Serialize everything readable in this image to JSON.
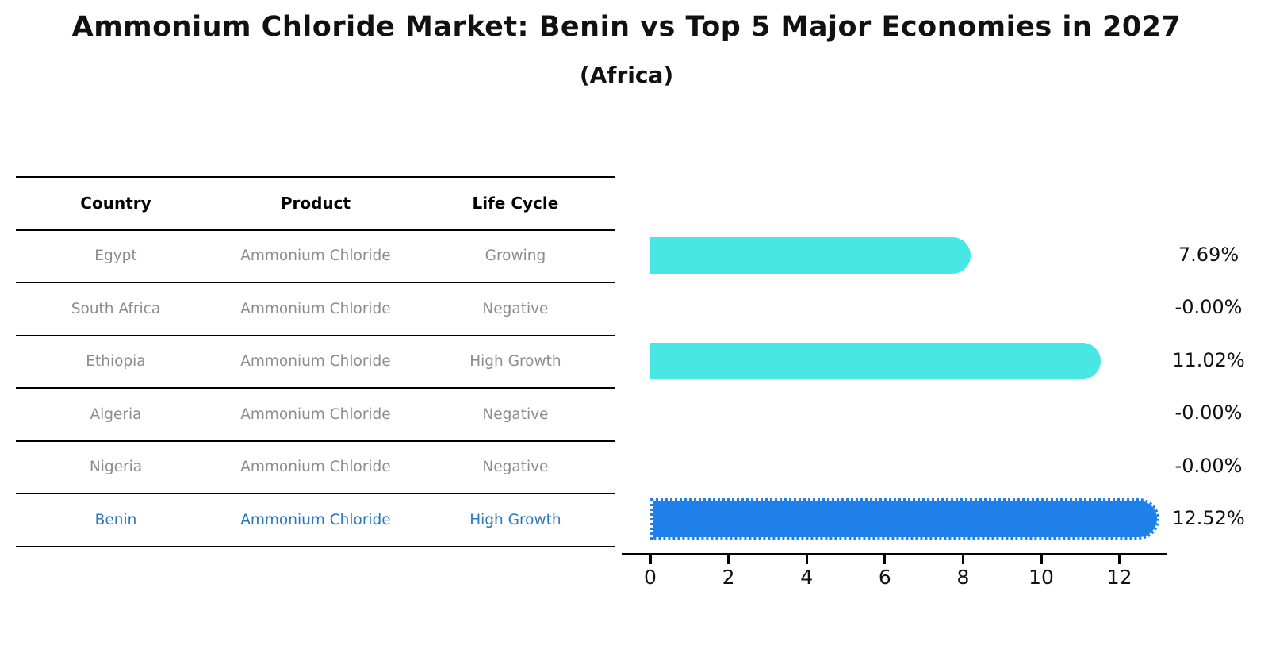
{
  "title": "Ammonium Chloride Market: Benin vs Top 5 Major Economies in 2027",
  "subtitle": "(Africa)",
  "table": {
    "headers": [
      "Country",
      "Product",
      "Life Cycle"
    ],
    "rows": [
      {
        "country": "Egypt",
        "product": "Ammonium Chloride",
        "life_cycle": "Growing",
        "highlight": false
      },
      {
        "country": "South Africa",
        "product": "Ammonium Chloride",
        "life_cycle": "Negative",
        "highlight": false
      },
      {
        "country": "Ethiopia",
        "product": "Ammonium Chloride",
        "life_cycle": "High Growth",
        "highlight": false
      },
      {
        "country": "Algeria",
        "product": "Ammonium Chloride",
        "life_cycle": "Negative",
        "highlight": false
      },
      {
        "country": "Nigeria",
        "product": "Ammonium Chloride",
        "life_cycle": "Negative",
        "highlight": false
      },
      {
        "country": "Benin",
        "product": "Ammonium Chloride",
        "life_cycle": "High Growth",
        "highlight": true
      }
    ]
  },
  "chart_data": {
    "type": "bar",
    "orientation": "horizontal",
    "title": "Ammonium Chloride Market: Benin vs Top 5 Major Economies in 2027 (Africa)",
    "categories": [
      "Egypt",
      "South Africa",
      "Ethiopia",
      "Algeria",
      "Nigeria",
      "Benin"
    ],
    "values": [
      7.69,
      -0.0,
      11.02,
      -0.0,
      -0.0,
      12.52
    ],
    "value_labels": [
      "7.69%",
      "-0.00%",
      "11.02%",
      "-0.00%",
      "-0.00%",
      "12.52%"
    ],
    "xticks": [
      "0",
      "2",
      "4",
      "6",
      "8",
      "10",
      "12"
    ],
    "xlim": [
      0,
      13
    ],
    "grid": false,
    "legend": "none",
    "bar_color": "#49E7E3",
    "highlight_bar_color": "#1E80E8",
    "highlight_category": "Benin"
  },
  "colors": {
    "background": "#ffffff",
    "row_text": "#8c8c8c",
    "highlight_text": "#2878be",
    "header_text": "#000000",
    "axis": "#000000",
    "value_text": "#111111"
  }
}
